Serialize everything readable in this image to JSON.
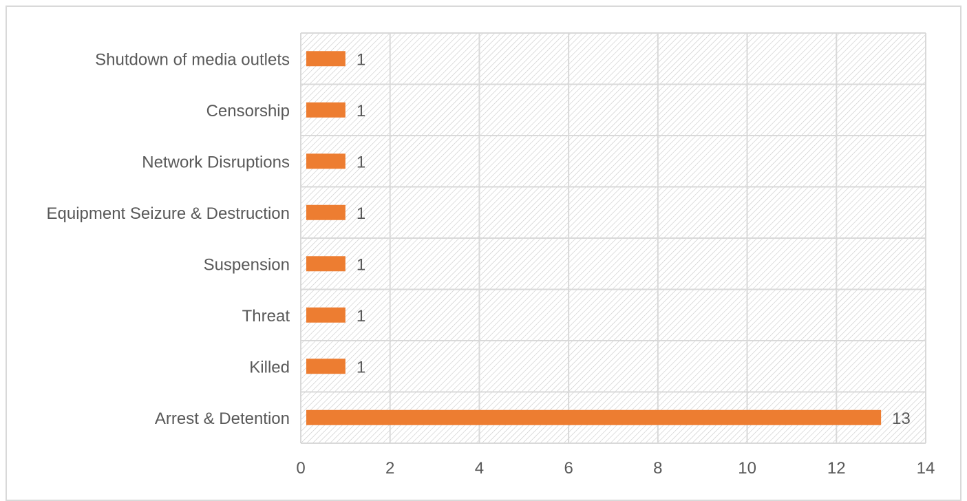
{
  "chart_data": {
    "type": "bar",
    "orientation": "horizontal",
    "categories": [
      "Arrest & Detention",
      "Killed",
      "Threat",
      "Suspension",
      "Equipment Seizure & Destruction",
      "Network Disruptions",
      "Censorship",
      "Shutdown of media outlets"
    ],
    "values": [
      13,
      1,
      1,
      1,
      1,
      1,
      1,
      1
    ],
    "data_labels": [
      "13",
      "1",
      "1",
      "1",
      "1",
      "1",
      "1",
      "1"
    ],
    "xlim": [
      0,
      14
    ],
    "x_ticks": [
      "0",
      "2",
      "4",
      "6",
      "8",
      "10",
      "12",
      "14"
    ],
    "title": "",
    "xlabel": "",
    "ylabel": "",
    "grid": true,
    "legend": "none",
    "colors": {
      "bar": "#ED7D31",
      "grid": "#d9d9d9",
      "hatch": "#c8c8c8",
      "text": "#595959",
      "frame": "#d9d9d9"
    }
  }
}
